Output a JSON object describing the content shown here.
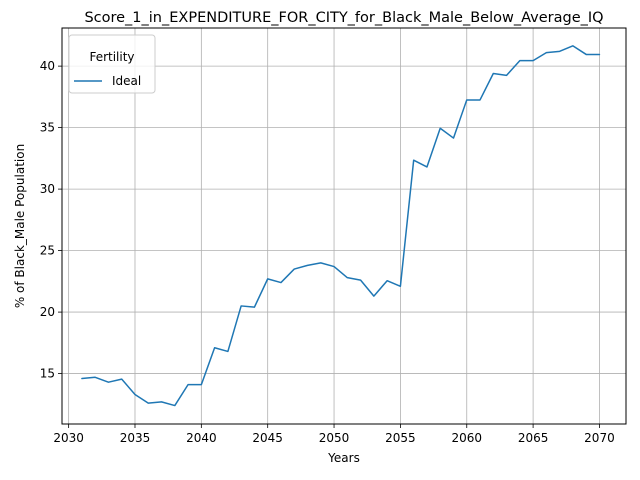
{
  "chart_data": {
    "type": "line",
    "title": "Score_1_in_EXPENDITURE_FOR_CITY_for_Black_Male_Below_Average_IQ",
    "xlabel": "Years",
    "ylabel": "% of Black_Male Population",
    "xlim": [
      2029.5,
      2072
    ],
    "ylim": [
      10.9,
      43.1
    ],
    "xticks": [
      2030,
      2035,
      2040,
      2045,
      2050,
      2055,
      2060,
      2065,
      2070
    ],
    "yticks": [
      15,
      20,
      25,
      30,
      35,
      40
    ],
    "grid": true,
    "legend": {
      "title": "Fertility",
      "placement": "upper-left"
    },
    "series": [
      {
        "name": "Ideal",
        "color": "#1f77b4",
        "x": [
          2031,
          2032,
          2033,
          2034,
          2035,
          2036,
          2037,
          2038,
          2039,
          2040,
          2041,
          2042,
          2043,
          2044,
          2045,
          2046,
          2047,
          2048,
          2049,
          2050,
          2051,
          2052,
          2053,
          2054,
          2055,
          2056,
          2057,
          2058,
          2059,
          2060,
          2061,
          2062,
          2063,
          2064,
          2065,
          2066,
          2067,
          2068,
          2069,
          2070
        ],
        "y": [
          14.6,
          14.7,
          14.3,
          14.55,
          13.3,
          12.6,
          12.7,
          12.4,
          14.1,
          14.1,
          17.1,
          16.8,
          20.5,
          20.4,
          22.7,
          22.4,
          23.5,
          23.8,
          24.0,
          23.7,
          22.8,
          22.6,
          21.3,
          22.55,
          22.1,
          32.35,
          31.8,
          34.95,
          34.15,
          37.25,
          37.25,
          39.4,
          39.25,
          40.45,
          40.45,
          41.1,
          41.2,
          41.65,
          40.95,
          40.95
        ]
      }
    ]
  }
}
